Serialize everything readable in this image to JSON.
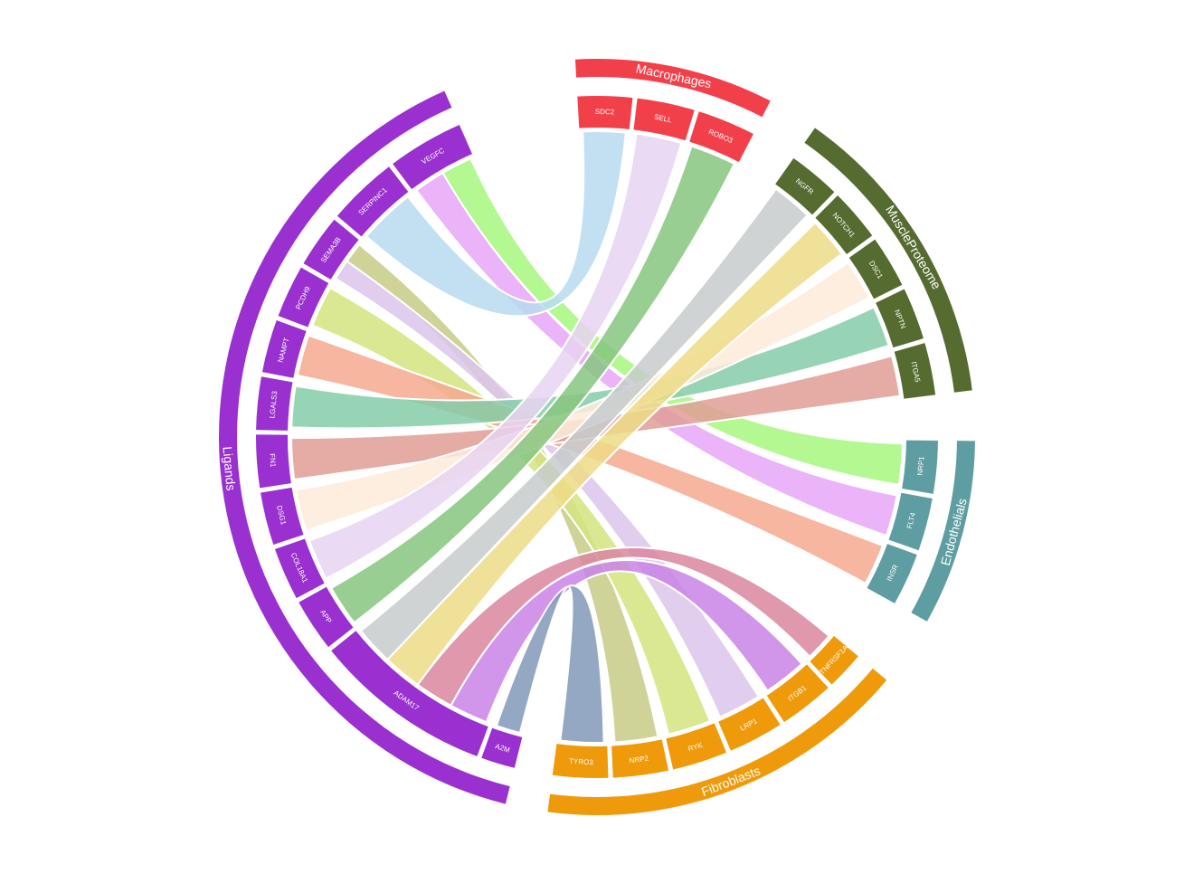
{
  "groups": [
    {
      "id": "macrophages",
      "label": "Macrophages",
      "color": "#F2404A"
    },
    {
      "id": "muscle",
      "label": "MuscleProteome",
      "color": "#566B30"
    },
    {
      "id": "endothelials",
      "label": "Endothelials",
      "color": "#5E9DA1"
    },
    {
      "id": "fibroblasts",
      "label": "Fibroblasts",
      "color": "#EE9A0A"
    },
    {
      "id": "ligands",
      "label": "Ligands",
      "color": "#9930CF"
    }
  ],
  "receptors": [
    {
      "label": "SDC2",
      "group": "macrophages"
    },
    {
      "label": "SELL",
      "group": "macrophages"
    },
    {
      "label": "ROBO3",
      "group": "macrophages"
    },
    {
      "label": "NGFR",
      "group": "muscle"
    },
    {
      "label": "NOTCH1",
      "group": "muscle"
    },
    {
      "label": "DSC1",
      "group": "muscle"
    },
    {
      "label": "NPTN",
      "group": "muscle"
    },
    {
      "label": "ITGA5",
      "group": "muscle"
    },
    {
      "label": "NRP1",
      "group": "endothelials"
    },
    {
      "label": "FLT4",
      "group": "endothelials"
    },
    {
      "label": "INSR",
      "group": "endothelials"
    },
    {
      "label": "TNFRSF1A",
      "group": "fibroblasts"
    },
    {
      "label": "ITGB1",
      "group": "fibroblasts"
    },
    {
      "label": "LRP1",
      "group": "fibroblasts"
    },
    {
      "label": "RYK",
      "group": "fibroblasts"
    },
    {
      "label": "NRP2",
      "group": "fibroblasts"
    },
    {
      "label": "TYRO3",
      "group": "fibroblasts"
    }
  ],
  "ligands": [
    {
      "label": "VEGFC"
    },
    {
      "label": "SERPINC1"
    },
    {
      "label": "SEMA3B"
    },
    {
      "label": "PCDH9"
    },
    {
      "label": "NAMPT"
    },
    {
      "label": "LGALS3"
    },
    {
      "label": "FN1"
    },
    {
      "label": "DSG1"
    },
    {
      "label": "COL18A1"
    },
    {
      "label": "APP"
    },
    {
      "label": "ADAM17"
    },
    {
      "label": "A2M"
    }
  ],
  "links": [
    {
      "ligand": "VEGFC",
      "receptor": "NRP1",
      "color": "#A6F77E"
    },
    {
      "ligand": "VEGFC",
      "receptor": "FLT4",
      "color": "#E7A6F7"
    },
    {
      "ligand": "SERPINC1",
      "receptor": "SDC2",
      "color": "#B9DBF1"
    },
    {
      "ligand": "SEMA3B",
      "receptor": "NRP2",
      "color": "#C7CB86"
    },
    {
      "ligand": "SEMA3B",
      "receptor": "LRP1",
      "color": "#DCC5EC"
    },
    {
      "ligand": "PCDH9",
      "receptor": "RYK",
      "color": "#D3E47E"
    },
    {
      "ligand": "NAMPT",
      "receptor": "INSR",
      "color": "#F5A98E"
    },
    {
      "ligand": "LGALS3",
      "receptor": "NPTN",
      "color": "#85CDA8"
    },
    {
      "ligand": "FN1",
      "receptor": "ITGA5",
      "color": "#E09D96"
    },
    {
      "ligand": "DSG1",
      "receptor": "DSC1",
      "color": "#FDEBDA"
    },
    {
      "ligand": "COL18A1",
      "receptor": "SELL",
      "color": "#E8D3F1"
    },
    {
      "ligand": "APP",
      "receptor": "ROBO3",
      "color": "#86C67F"
    },
    {
      "ligand": "ADAM17",
      "receptor": "NGFR",
      "color": "#C7CBCC"
    },
    {
      "ligand": "ADAM17",
      "receptor": "NOTCH1",
      "color": "#EDDC86"
    },
    {
      "ligand": "ADAM17",
      "receptor": "TNFRSF1A",
      "color": "#D9869E"
    },
    {
      "ligand": "ADAM17",
      "receptor": "ITGB1",
      "color": "#C983E6"
    },
    {
      "ligand": "A2M",
      "receptor": "TYRO3",
      "color": "#8399B8"
    }
  ]
}
